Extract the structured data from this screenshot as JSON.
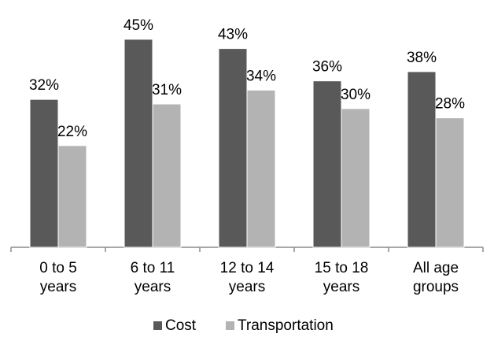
{
  "chart_data": {
    "type": "bar",
    "categories": [
      [
        "0 to 5",
        "years"
      ],
      [
        "6 to 11",
        "years"
      ],
      [
        "12 to 14",
        "years"
      ],
      [
        "15 to 18",
        "years"
      ],
      [
        "All age",
        "groups"
      ]
    ],
    "series": [
      {
        "name": "Cost",
        "values": [
          32,
          45,
          43,
          36,
          38
        ],
        "labels": [
          "32%",
          "45%",
          "43%",
          "36%",
          "38%"
        ],
        "color": "#595959"
      },
      {
        "name": "Transportation",
        "values": [
          22,
          31,
          34,
          30,
          28
        ],
        "labels": [
          "22%",
          "31%",
          "34%",
          "30%",
          "28%"
        ],
        "color": "#b3b3b3"
      }
    ],
    "ylim": [
      0,
      46
    ],
    "grid": false,
    "legend_position": "bottom",
    "title": "",
    "xlabel": "",
    "ylabel": ""
  }
}
